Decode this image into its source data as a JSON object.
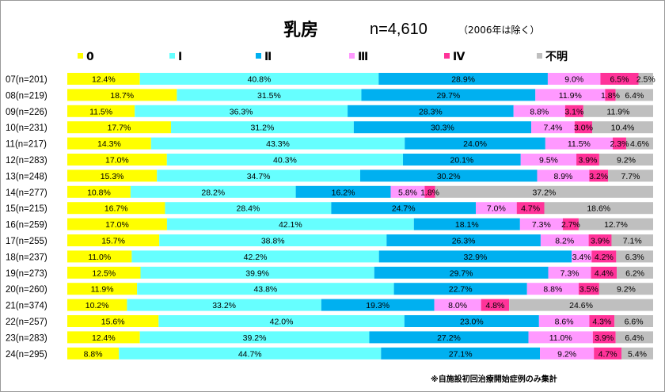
{
  "chart_data": {
    "type": "bar",
    "orientation": "horizontal",
    "stacked": "percent",
    "title": "乳房",
    "total_n": "n=4,610",
    "exclusion_note": "（2006年は除く）",
    "footnote": "※自施設初回治療開始症例のみ集計",
    "categories": [
      "07(n=201)",
      "08(n=219)",
      "09(n=226)",
      "10(n=231)",
      "11(n=217)",
      "12(n=283)",
      "13(n=248)",
      "14(n=277)",
      "15(n=215)",
      "16(n=259)",
      "17(n=255)",
      "18(n=237)",
      "19(n=273)",
      "20(n=260)",
      "21(n=374)",
      "22(n=257)",
      "23(n=283)",
      "24(n=295)"
    ],
    "series": [
      {
        "name": "0",
        "color": "#ffff00",
        "values": [
          12.4,
          18.7,
          11.5,
          17.7,
          14.3,
          17.0,
          15.3,
          10.8,
          16.7,
          17.0,
          15.7,
          11.0,
          12.5,
          11.9,
          10.2,
          15.6,
          12.4,
          8.8
        ],
        "labels": [
          "12.4%",
          "18.7%",
          "11.5%",
          "17.7%",
          "14.3%",
          "17.0%",
          "15.3%",
          "10.8%",
          "16.7%",
          "17.0%",
          "15.7%",
          "11.0%",
          "12.5%",
          "11.9%",
          "10.2%",
          "15.6%",
          "12.4%",
          "8.8%"
        ]
      },
      {
        "name": "Ⅰ",
        "color": "#66ffff",
        "values": [
          40.8,
          31.5,
          36.3,
          31.2,
          43.3,
          40.3,
          34.7,
          28.2,
          28.4,
          42.1,
          38.8,
          42.2,
          39.9,
          43.8,
          33.2,
          42.0,
          39.2,
          44.7
        ],
        "labels": [
          "40.8%",
          "31.5%",
          "36.3%",
          "31.2%",
          "43.3%",
          "40.3%",
          "34.7%",
          "28.2%",
          "28.4%",
          "42.1%",
          "38.8%",
          "42.2%",
          "39.9%",
          "43.8%",
          "33.2%",
          "42.0%",
          "39.2%",
          "44.7%"
        ]
      },
      {
        "name": "Ⅱ",
        "color": "#00b0f0",
        "values": [
          28.9,
          29.7,
          28.3,
          30.3,
          24.0,
          20.1,
          30.2,
          16.2,
          24.7,
          18.1,
          26.3,
          32.9,
          29.7,
          22.7,
          19.3,
          23.0,
          27.2,
          27.1
        ],
        "labels": [
          "28.9%",
          "29.7%",
          "28.3%",
          "30.3%",
          "24.0%",
          "20.1%",
          "30.2%",
          "16.2%",
          "24.7%",
          "18.1%",
          "26.3%",
          "32.9%",
          "29.7%",
          "22.7%",
          "19.3%",
          "23.0%",
          "27.2%",
          "27.1%"
        ]
      },
      {
        "name": "Ⅲ",
        "color": "#ff99ff",
        "values": [
          9.0,
          11.9,
          8.8,
          7.4,
          11.5,
          9.5,
          8.9,
          5.8,
          7.0,
          7.3,
          8.2,
          3.4,
          7.3,
          8.8,
          8.0,
          8.6,
          11.0,
          9.2
        ],
        "labels": [
          "9.0%",
          "11.9%",
          "8.8%",
          "7.4%",
          "11.5%",
          "9.5%",
          "8.9%",
          "5.8%",
          "7.0%",
          "7.3%",
          "8.2%",
          "3.4%",
          "7.3%",
          "8.8%",
          "8.0%",
          "8.6%",
          "11.0%",
          "9.2%"
        ]
      },
      {
        "name": "Ⅳ",
        "color": "#ff3399",
        "values": [
          6.5,
          1.8,
          3.1,
          3.0,
          2.3,
          3.9,
          3.2,
          1.8,
          4.7,
          2.7,
          3.9,
          4.2,
          4.4,
          3.5,
          4.8,
          4.3,
          3.9,
          4.7
        ],
        "labels": [
          "6.5%",
          "1.8%",
          "3.1%",
          "3.0%",
          "2.3%",
          "3.9%",
          "3.2%",
          "1.8%",
          "4.7%",
          "2.7%",
          "3.9%",
          "4.2%",
          "4.4%",
          "3.5%",
          "4.8%",
          "4.3%",
          "3.9%",
          "4.7%"
        ]
      },
      {
        "name": "不明",
        "color": "#bfbfbf",
        "values": [
          2.5,
          6.4,
          11.9,
          10.4,
          4.6,
          9.2,
          7.7,
          37.2,
          18.6,
          12.7,
          7.1,
          6.3,
          6.2,
          9.2,
          24.6,
          6.6,
          6.4,
          5.4
        ],
        "labels": [
          "2.5%",
          "6.4%",
          "11.9%",
          "10.4%",
          "4.6%",
          "9.2%",
          "7.7%",
          "37.2%",
          "18.6%",
          "12.7%",
          "7.1%",
          "6.3%",
          "6.2%",
          "9.2%",
          "24.6%",
          "6.6%",
          "6.4%",
          "5.4%"
        ]
      }
    ],
    "xlim": [
      0,
      100
    ],
    "grid": false,
    "legend": "top"
  }
}
